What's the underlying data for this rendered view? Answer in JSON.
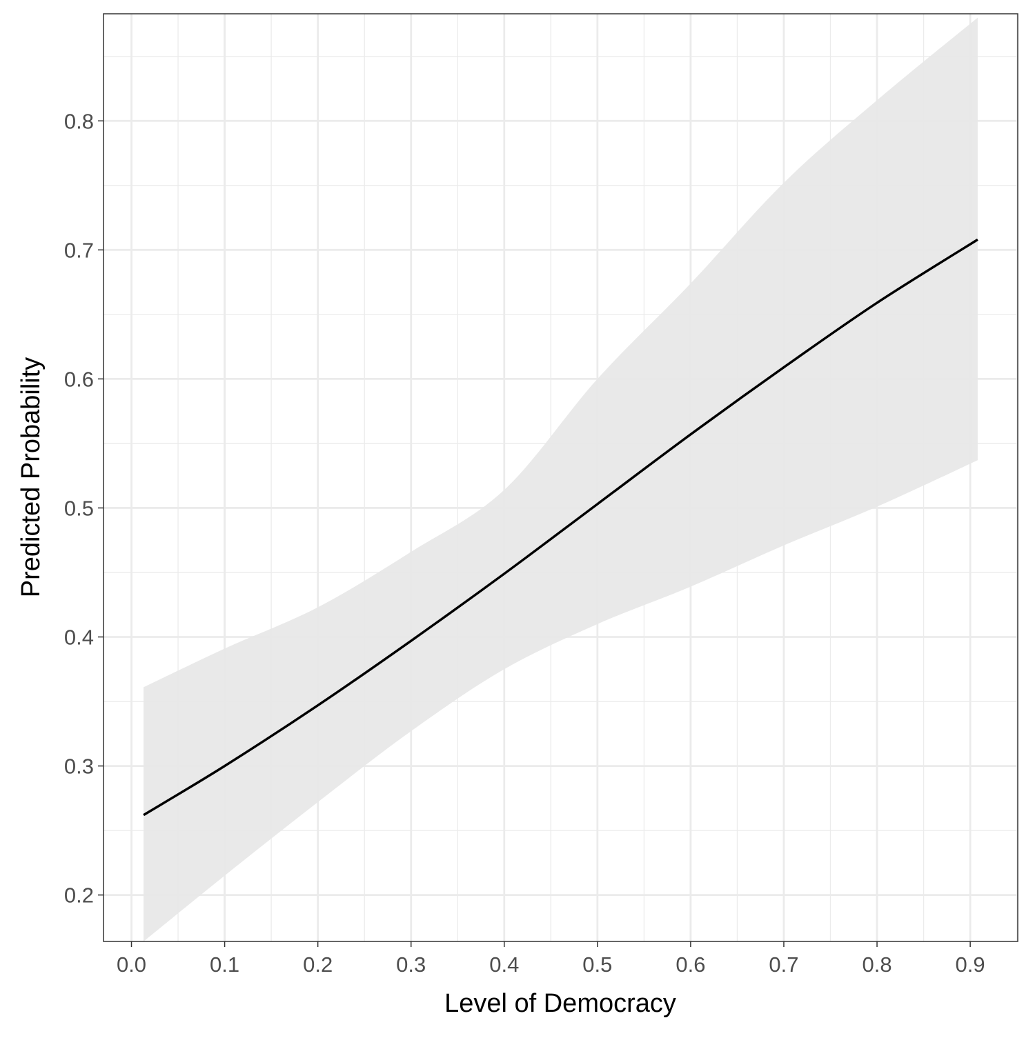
{
  "chart_data": {
    "type": "line",
    "title": "",
    "xlabel": "Level of Democracy",
    "ylabel": "Predicted Probability",
    "xlim": [
      -0.03,
      0.951
    ],
    "ylim": [
      0.164,
      0.883
    ],
    "xticks": [
      "0.0",
      "0.1",
      "0.2",
      "0.3",
      "0.4",
      "0.5",
      "0.6",
      "0.7",
      "0.8",
      "0.9"
    ],
    "xtick_values": [
      0,
      0.1,
      0.2,
      0.3,
      0.4,
      0.5,
      0.6,
      0.7,
      0.8,
      0.9
    ],
    "yticks": [
      "0.2",
      "0.3",
      "0.4",
      "0.5",
      "0.6",
      "0.7",
      "0.8"
    ],
    "ytick_values": [
      0.2,
      0.3,
      0.4,
      0.5,
      0.6,
      0.7,
      0.8
    ],
    "grid": true,
    "colors": {
      "line": "#000000",
      "ribbon": "#e8e8e8",
      "grid": "#ebebeb",
      "border": "#333333"
    },
    "x": [
      0.013,
      0.1,
      0.2,
      0.3,
      0.4,
      0.5,
      0.6,
      0.7,
      0.8,
      0.908
    ],
    "series": [
      {
        "values": [
          0.262,
          0.3,
          0.347,
          0.397,
          0.449,
          0.503,
          0.557,
          0.609,
          0.659,
          0.708
        ],
        "lower": [
          0.164,
          0.215,
          0.272,
          0.327,
          0.375,
          0.41,
          0.439,
          0.471,
          0.501,
          0.537
        ],
        "upper": [
          0.361,
          0.391,
          0.423,
          0.466,
          0.514,
          0.6,
          0.674,
          0.752,
          0.816,
          0.88
        ]
      }
    ]
  }
}
